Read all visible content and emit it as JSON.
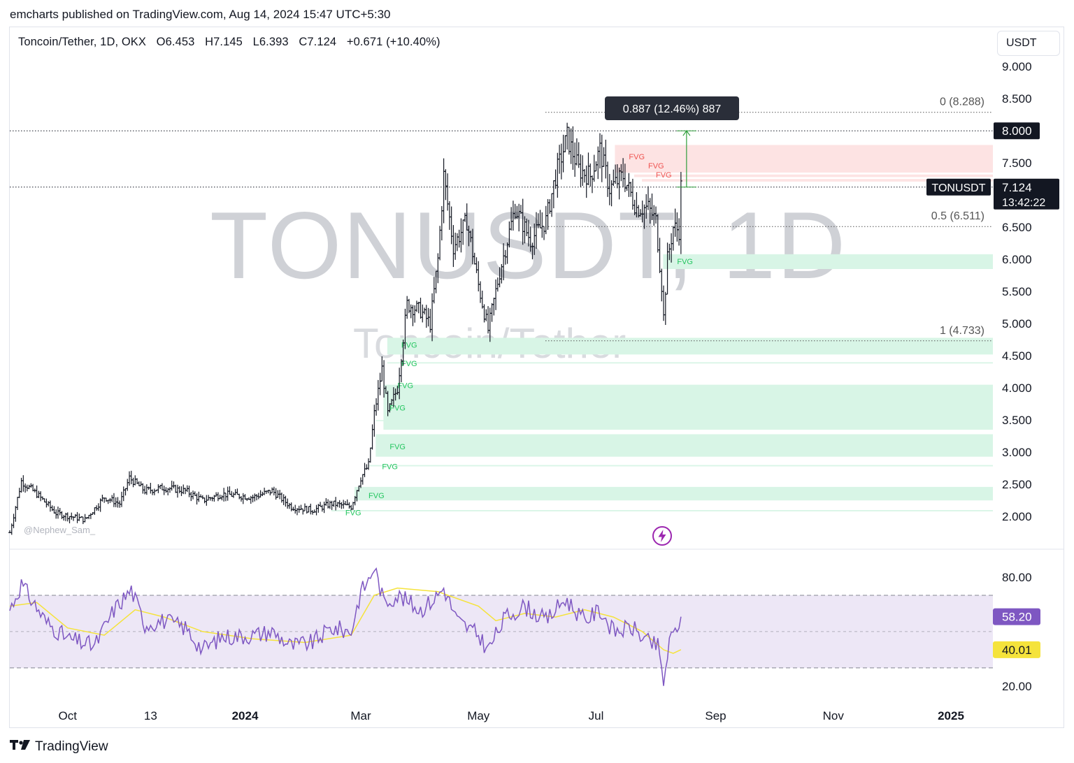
{
  "header": {
    "publisher": "emcharts published on TradingView.com, Aug 14, 2024 15:47 UTC+5:30"
  },
  "legend": {
    "symbol": "Toncoin/Tether, 1D, OKX",
    "open": "O6.453",
    "high": "H7.145",
    "low": "L6.393",
    "close": "C7.124",
    "change": "+0.671 (+10.40%)"
  },
  "currency_button": "USDT",
  "watermark": {
    "symbol": "TONUSDT, 1D",
    "name": "Toncoin/Tether"
  },
  "author_tag": "@Nephew_Sam_",
  "footer": {
    "brand": "TradingView"
  },
  "icons": {
    "lightning": "lightning-icon",
    "logo": "tradingview-logo-icon"
  },
  "colors": {
    "fvg_bull": "#d8f5e6",
    "fvg_bear": "#fde3e3",
    "fvg_bull_text": "#22c55e",
    "fvg_bear_text": "#ef5350",
    "rsi_line": "#7e57c2",
    "rsi_ma": "#f5e33b",
    "rsi_band": "#ede7f6",
    "measure": "#2e9e3a"
  },
  "chart_data": {
    "type": "candlestick",
    "timeframe": "1D",
    "price_axis": {
      "ticks": [
        "9.000",
        "8.500",
        "8.000",
        "7.500",
        "7.124",
        "6.500",
        "6.000",
        "5.500",
        "5.000",
        "4.500",
        "4.000",
        "3.500",
        "3.000",
        "2.500",
        "2.000"
      ],
      "ylim": [
        1.6,
        9.6
      ]
    },
    "time_axis": {
      "labels": [
        {
          "text": "Oct",
          "date": "2023-10-01",
          "bold": false
        },
        {
          "text": "13",
          "date": "2023-11-13",
          "bold": false
        },
        {
          "text": "2024",
          "date": "2024-01-01",
          "bold": true
        },
        {
          "text": "Mar",
          "date": "2024-03-01",
          "bold": false
        },
        {
          "text": "May",
          "date": "2024-05-01",
          "bold": false
        },
        {
          "text": "Jul",
          "date": "2024-07-01",
          "bold": false
        },
        {
          "text": "Sep",
          "date": "2024-09-01",
          "bold": false
        },
        {
          "text": "Nov",
          "date": "2024-11-01",
          "bold": false
        },
        {
          "text": "2025",
          "date": "2025-01-01",
          "bold": true
        }
      ],
      "range": [
        "2023-09-01",
        "2025-02-28"
      ]
    },
    "price_series_approx": [
      [
        "2023-09-01",
        1.75
      ],
      [
        "2023-09-07",
        2.55
      ],
      [
        "2023-09-15",
        2.35
      ],
      [
        "2023-09-25",
        2.05
      ],
      [
        "2023-10-10",
        1.95
      ],
      [
        "2023-10-20",
        2.3
      ],
      [
        "2023-10-28",
        2.2
      ],
      [
        "2023-11-02",
        2.6
      ],
      [
        "2023-11-10",
        2.4
      ],
      [
        "2023-11-20",
        2.45
      ],
      [
        "2023-12-01",
        2.4
      ],
      [
        "2023-12-10",
        2.25
      ],
      [
        "2023-12-20",
        2.35
      ],
      [
        "2024-01-05",
        2.3
      ],
      [
        "2024-01-15",
        2.4
      ],
      [
        "2024-01-25",
        2.15
      ],
      [
        "2024-02-05",
        2.1
      ],
      [
        "2024-02-15",
        2.2
      ],
      [
        "2024-02-25",
        2.15
      ],
      [
        "2024-03-01",
        2.6
      ],
      [
        "2024-03-05",
        2.8
      ],
      [
        "2024-03-08",
        3.6
      ],
      [
        "2024-03-12",
        4.3
      ],
      [
        "2024-03-15",
        3.6
      ],
      [
        "2024-03-20",
        4.0
      ],
      [
        "2024-03-25",
        5.3
      ],
      [
        "2024-04-01",
        5.2
      ],
      [
        "2024-04-06",
        5.0
      ],
      [
        "2024-04-10",
        6.0
      ],
      [
        "2024-04-13",
        7.3
      ],
      [
        "2024-04-18",
        6.2
      ],
      [
        "2024-04-25",
        6.6
      ],
      [
        "2024-05-01",
        5.6
      ],
      [
        "2024-05-06",
        4.9
      ],
      [
        "2024-05-12",
        5.8
      ],
      [
        "2024-05-20",
        6.8
      ],
      [
        "2024-05-28",
        6.3
      ],
      [
        "2024-06-05",
        6.6
      ],
      [
        "2024-06-10",
        7.3
      ],
      [
        "2024-06-16",
        7.9
      ],
      [
        "2024-06-22",
        7.4
      ],
      [
        "2024-06-28",
        7.3
      ],
      [
        "2024-07-03",
        7.7
      ],
      [
        "2024-07-08",
        7.1
      ],
      [
        "2024-07-15",
        7.3
      ],
      [
        "2024-07-22",
        6.8
      ],
      [
        "2024-07-28",
        6.8
      ],
      [
        "2024-08-01",
        6.6
      ],
      [
        "2024-08-04",
        5.6
      ],
      [
        "2024-08-05",
        5.1
      ],
      [
        "2024-08-07",
        6.0
      ],
      [
        "2024-08-10",
        6.5
      ],
      [
        "2024-08-13",
        6.45
      ],
      [
        "2024-08-14",
        7.124
      ]
    ],
    "current": {
      "label": "TONUSDT",
      "price": "7.124",
      "countdown": "13:42:22"
    },
    "horizontal_levels": [
      {
        "price": 8.0,
        "label": "8.000",
        "style": "dotted"
      },
      {
        "price": 7.124,
        "style": "dotted"
      }
    ],
    "fibonacci": [
      {
        "label": "0 (8.288)",
        "price": 8.288
      },
      {
        "label": "0.5 (6.511)",
        "price": 6.511
      },
      {
        "label": "1 (4.733)",
        "price": 4.733
      }
    ],
    "fvg_zones": [
      {
        "side": "bear",
        "top": 7.78,
        "bottom": 7.35,
        "label": "FVG",
        "label_x": "2024-07-18",
        "label_price": 7.6
      },
      {
        "side": "bear",
        "top": 7.32,
        "bottom": 7.28,
        "label": "FVG",
        "label_x": "2024-07-28",
        "label_price": 7.46
      },
      {
        "side": "bear",
        "top": 7.25,
        "bottom": 7.21,
        "label": "FVG",
        "label_x": "2024-08-01",
        "label_price": 7.32
      },
      {
        "side": "bull",
        "top": 6.08,
        "bottom": 5.85,
        "label": "FVG",
        "label_x": "2024-08-12",
        "label_price": 5.97
      },
      {
        "side": "bull",
        "top": 4.78,
        "bottom": 4.52,
        "label": "FVG",
        "label_x": "2024-03-22",
        "label_price": 4.67
      },
      {
        "side": "bull",
        "top": 4.4,
        "bottom": 4.38,
        "label": "FVG",
        "label_x": "2024-03-22",
        "label_price": 4.38
      },
      {
        "side": "bull",
        "top": 4.05,
        "bottom": 3.35,
        "label": "FVG",
        "label_x": "2024-03-20",
        "label_price": 4.04
      },
      {
        "side": "bull",
        "top": 3.5,
        "bottom": 3.49,
        "label": "FVG",
        "label_x": "2024-03-16",
        "label_price": 3.69
      },
      {
        "side": "bull",
        "top": 3.28,
        "bottom": 2.93,
        "label": "FVG",
        "label_x": "2024-03-16",
        "label_price": 3.09
      },
      {
        "side": "bull",
        "top": 2.8,
        "bottom": 2.78,
        "label": "FVG",
        "label_x": "2024-03-12",
        "label_price": 2.78
      },
      {
        "side": "bull",
        "top": 2.46,
        "bottom": 2.25,
        "label": "FVG",
        "label_x": "2024-03-05",
        "label_price": 2.33
      },
      {
        "side": "bull",
        "top": 2.1,
        "bottom": 2.08,
        "label": "FVG",
        "label_x": "2024-02-22",
        "label_price": 2.06
      }
    ],
    "measure": {
      "label": "0.887 (12.46%) 887",
      "from_price": 7.124,
      "to_price": 8.0,
      "date": "2024-08-14"
    },
    "rsi": {
      "ticks": [
        "80.00",
        "20.00"
      ],
      "ylim": [
        13,
        90
      ],
      "bands": {
        "upper": 70,
        "middle": 50,
        "lower": 30
      },
      "value": "58.20",
      "ma_value": "40.01",
      "series_approx": [
        [
          "2023-09-01",
          62
        ],
        [
          "2023-09-07",
          76
        ],
        [
          "2023-09-12",
          68
        ],
        [
          "2023-09-20",
          55
        ],
        [
          "2023-10-01",
          46
        ],
        [
          "2023-10-15",
          42
        ],
        [
          "2023-10-25",
          62
        ],
        [
          "2023-11-03",
          73
        ],
        [
          "2023-11-10",
          54
        ],
        [
          "2023-11-20",
          56
        ],
        [
          "2023-12-01",
          52
        ],
        [
          "2023-12-10",
          40
        ],
        [
          "2023-12-20",
          47
        ],
        [
          "2024-01-05",
          48
        ],
        [
          "2024-01-15",
          50
        ],
        [
          "2024-01-25",
          42
        ],
        [
          "2024-02-05",
          44
        ],
        [
          "2024-02-15",
          52
        ],
        [
          "2024-02-25",
          50
        ],
        [
          "2024-03-01",
          72
        ],
        [
          "2024-03-05",
          78
        ],
        [
          "2024-03-08",
          86
        ],
        [
          "2024-03-13",
          66
        ],
        [
          "2024-03-20",
          70
        ],
        [
          "2024-04-01",
          62
        ],
        [
          "2024-04-08",
          68
        ],
        [
          "2024-04-13",
          74
        ],
        [
          "2024-04-20",
          56
        ],
        [
          "2024-05-01",
          48
        ],
        [
          "2024-05-06",
          40
        ],
        [
          "2024-05-15",
          58
        ],
        [
          "2024-05-25",
          64
        ],
        [
          "2024-06-05",
          56
        ],
        [
          "2024-06-15",
          68
        ],
        [
          "2024-06-25",
          56
        ],
        [
          "2024-07-03",
          62
        ],
        [
          "2024-07-10",
          50
        ],
        [
          "2024-07-20",
          52
        ],
        [
          "2024-07-28",
          44
        ],
        [
          "2024-08-02",
          42
        ],
        [
          "2024-08-05",
          22
        ],
        [
          "2024-08-08",
          44
        ],
        [
          "2024-08-11",
          50
        ],
        [
          "2024-08-14",
          58.2
        ]
      ],
      "ma_series_approx": [
        [
          "2023-09-01",
          64
        ],
        [
          "2023-09-15",
          66
        ],
        [
          "2023-10-01",
          52
        ],
        [
          "2023-10-20",
          48
        ],
        [
          "2023-11-05",
          62
        ],
        [
          "2023-11-20",
          58
        ],
        [
          "2023-12-10",
          50
        ],
        [
          "2024-01-05",
          46
        ],
        [
          "2024-02-01",
          44
        ],
        [
          "2024-02-25",
          48
        ],
        [
          "2024-03-08",
          70
        ],
        [
          "2024-03-20",
          74
        ],
        [
          "2024-04-10",
          72
        ],
        [
          "2024-05-01",
          64
        ],
        [
          "2024-05-10",
          56
        ],
        [
          "2024-05-25",
          60
        ],
        [
          "2024-06-10",
          58
        ],
        [
          "2024-06-25",
          62
        ],
        [
          "2024-07-10",
          58
        ],
        [
          "2024-07-25",
          50
        ],
        [
          "2024-08-05",
          40
        ],
        [
          "2024-08-10",
          38
        ],
        [
          "2024-08-14",
          40.01
        ]
      ]
    }
  }
}
